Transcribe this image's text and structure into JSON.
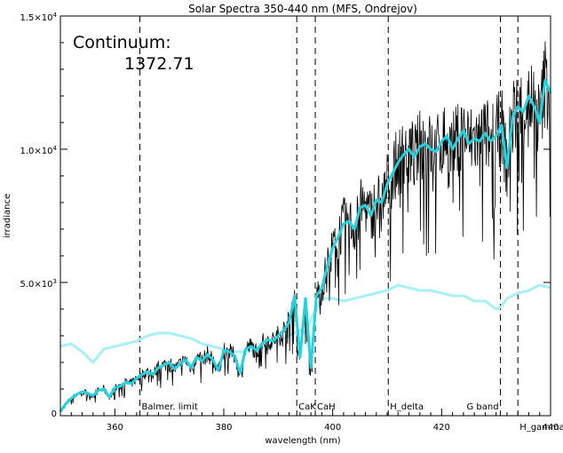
{
  "chart_data": {
    "type": "line",
    "title": "Solar Spectra 350-440 nm (MFS, Ondrejov)",
    "xlabel": "wavelength (nm)",
    "ylabel": "irradiance",
    "xlim": [
      350,
      440
    ],
    "ylim": [
      0,
      15000
    ],
    "x_ticks": [
      360,
      380,
      400,
      420,
      440
    ],
    "x_tick_labels": [
      "360",
      "380",
      "400",
      "420",
      "440"
    ],
    "y_ticks": [
      0,
      5000,
      10000,
      15000
    ],
    "y_tick_labels": [
      {
        "mantissa": "0",
        "exponent": ""
      },
      {
        "mantissa": "5.0×10",
        "exponent": "3"
      },
      {
        "mantissa": "1.0×10",
        "exponent": "4"
      },
      {
        "mantissa": "1.5×10",
        "exponent": "4"
      }
    ],
    "grid": false,
    "legend": "none",
    "annotation": {
      "label": "Continuum:",
      "value": "1372.71"
    },
    "colors": {
      "spectrum": "#000000",
      "smoothed": "#22d3de",
      "continuum": "#a8f0f6"
    },
    "reference_lines": [
      {
        "x": 364.6,
        "label": "Balmer. limit"
      },
      {
        "x": 393.4,
        "label": "CaK"
      },
      {
        "x": 396.8,
        "label": "CaH"
      },
      {
        "x": 410.2,
        "label": "H_delta"
      },
      {
        "x": 430.8,
        "label": "G band"
      },
      {
        "x": 434.0,
        "label": "H_gamma"
      }
    ],
    "series": [
      {
        "style": "smoothed",
        "x": [
          350,
          351,
          352,
          353,
          354,
          355,
          356,
          357,
          358,
          359,
          360,
          361,
          362,
          363,
          364,
          365,
          366,
          367,
          368,
          369,
          370,
          371,
          372,
          373,
          374,
          375,
          376,
          377,
          378,
          379,
          380,
          381,
          382,
          383,
          384,
          385,
          386,
          387,
          388,
          389,
          390,
          391,
          392,
          393,
          394,
          395,
          396,
          397,
          398,
          399,
          400,
          401,
          402,
          403,
          404,
          405,
          406,
          407,
          408,
          409,
          410,
          411,
          412,
          413,
          414,
          415,
          416,
          417,
          418,
          419,
          420,
          421,
          422,
          423,
          424,
          425,
          426,
          427,
          428,
          429,
          430,
          431,
          432,
          433,
          434,
          435,
          436,
          437,
          438,
          439,
          440
        ],
        "y": [
          150,
          450,
          650,
          800,
          900,
          850,
          750,
          950,
          1000,
          700,
          1050,
          1100,
          1250,
          1200,
          1400,
          1550,
          1650,
          1550,
          1800,
          1900,
          2000,
          1750,
          1950,
          2100,
          1800,
          2200,
          2050,
          2300,
          2100,
          1700,
          2450,
          2400,
          2250,
          1600,
          2500,
          2600,
          2450,
          2700,
          2850,
          2800,
          3000,
          3200,
          3500,
          4500,
          2200,
          4400,
          1800,
          4500,
          4800,
          5600,
          6300,
          6700,
          7200,
          7300,
          7000,
          7800,
          7900,
          7500,
          8100,
          8000,
          8700,
          9100,
          9500,
          9800,
          10000,
          9700,
          10100,
          10200,
          10000,
          9900,
          10300,
          10500,
          10000,
          10400,
          10700,
          10200,
          10400,
          10300,
          10600,
          10300,
          10500,
          10900,
          9300,
          11200,
          11600,
          11400,
          12000,
          11600,
          11000,
          12600,
          12100
        ]
      },
      {
        "style": "continuum",
        "x": [
          350,
          352,
          354,
          356,
          358,
          360,
          362,
          364,
          366,
          368,
          370,
          372,
          374,
          376,
          378,
          380,
          382,
          384,
          386,
          388,
          390,
          392,
          394,
          395,
          396,
          398,
          400,
          402,
          404,
          406,
          408,
          410,
          412,
          414,
          416,
          418,
          420,
          422,
          424,
          426,
          428,
          430,
          431,
          432,
          434,
          436,
          438,
          440
        ],
        "y": [
          2600,
          2700,
          2400,
          2000,
          2500,
          2600,
          2700,
          2800,
          3000,
          3100,
          3100,
          3000,
          2900,
          2700,
          2600,
          2500,
          2400,
          2400,
          2500,
          2600,
          2800,
          3000,
          3200,
          3100,
          3600,
          4400,
          4400,
          4300,
          4400,
          4500,
          4600,
          4700,
          4900,
          4800,
          4700,
          4700,
          4600,
          4500,
          4500,
          4300,
          4300,
          4000,
          4100,
          4400,
          4600,
          4700,
          4900,
          4800
        ]
      }
    ]
  }
}
